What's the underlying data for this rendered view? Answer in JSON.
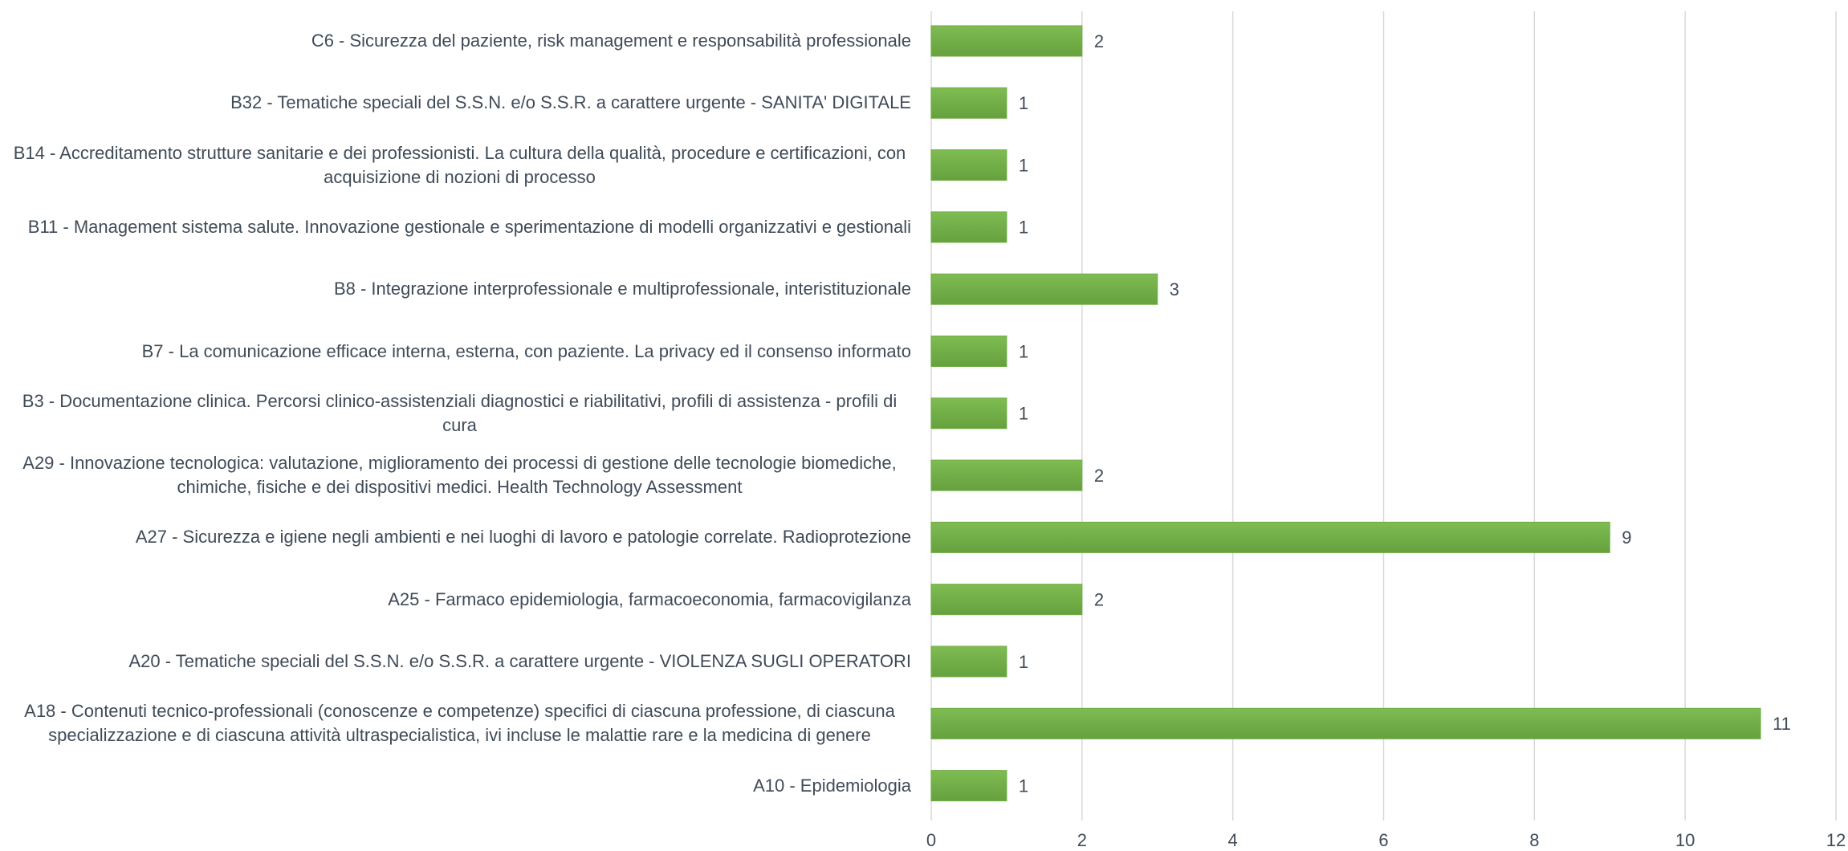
{
  "chart_data": {
    "type": "barh",
    "categories": [
      "C6 - Sicurezza del paziente, risk management e responsabilità professionale",
      "B32 - Tematiche speciali del S.S.N. e/o S.S.R. a carattere urgente - SANITA' DIGITALE",
      "B14 - Accreditamento strutture sanitarie e dei professionisti. La cultura della qualità, procedure e certificazioni, con acquisizione di nozioni di processo",
      "B11 - Management sistema salute. Innovazione gestionale e sperimentazione di modelli organizzativi e gestionali",
      "B8 - Integrazione interprofessionale e multiprofessionale, interistituzionale",
      "B7 - La comunicazione efficace interna, esterna, con paziente. La privacy ed il consenso informato",
      "B3 - Documentazione clinica. Percorsi clinico-assistenziali diagnostici e riabilitativi, profili di assistenza - profili di cura",
      "A29 - Innovazione tecnologica: valutazione, miglioramento dei processi di gestione delle tecnologie biomediche, chimiche, fisiche e dei dispositivi medici. Health Technology Assessment",
      "A27 - Sicurezza e igiene negli ambienti e nei luoghi di lavoro e patologie correlate. Radioprotezione",
      "A25 - Farmaco epidemiologia, farmacoeconomia, farmacovigilanza",
      "A20 - Tematiche speciali del S.S.N. e/o S.S.R. a carattere urgente - VIOLENZA SUGLI OPERATORI",
      "A18 - Contenuti tecnico-professionali (conoscenze e competenze) specifici di ciascuna professione, di ciascuna specializzazione e di ciascuna attività ultraspecialistica, ivi incluse le malattie rare e la medicina di genere",
      "A10 - Epidemiologia"
    ],
    "values": [
      2,
      1,
      1,
      1,
      3,
      1,
      1,
      2,
      9,
      2,
      1,
      11,
      1
    ],
    "color": "#70ad47",
    "xlim": [
      0,
      12
    ],
    "xticks": [
      0,
      2,
      4,
      6,
      8,
      10,
      12
    ],
    "grid": true
  }
}
